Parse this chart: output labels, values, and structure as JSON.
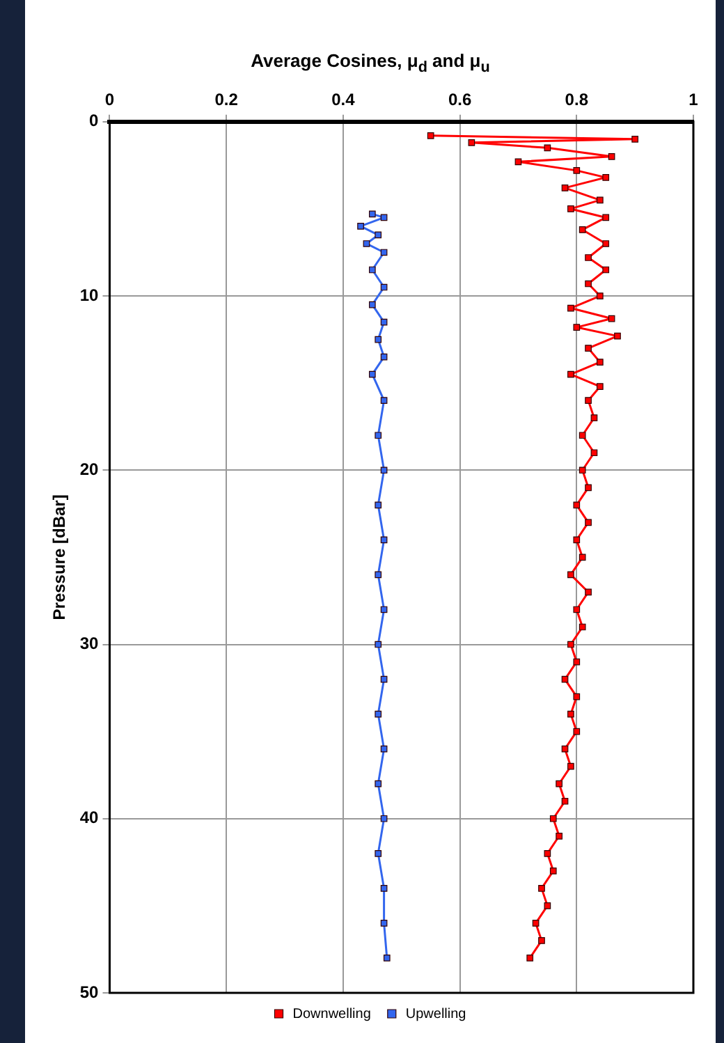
{
  "chart_data": {
    "type": "line",
    "xlabel": "Average Cosines, μ$_{d}$ and μ$_{u}$",
    "ylabel": "Pressure [dBar]",
    "xlim": [
      0,
      1
    ],
    "xticks": [
      0,
      0.2,
      0.4,
      0.6,
      0.8,
      1
    ],
    "ylim": [
      50,
      0
    ],
    "yticks": [
      0,
      10,
      20,
      30,
      40,
      50
    ],
    "grid": true,
    "legend": "bottom",
    "marker": "square",
    "line_style": "solid",
    "series": [
      {
        "name": "Downwelling",
        "color": "#ff0000",
        "x": [
          0.55,
          0.9,
          0.62,
          0.75,
          0.86,
          0.7,
          0.8,
          0.85,
          0.78,
          0.84,
          0.79,
          0.85,
          0.81,
          0.85,
          0.82,
          0.85,
          0.82,
          0.84,
          0.79,
          0.86,
          0.8,
          0.87,
          0.82,
          0.84,
          0.79,
          0.84,
          0.82,
          0.83,
          0.81,
          0.83,
          0.81,
          0.82,
          0.8,
          0.82,
          0.8,
          0.81,
          0.79,
          0.82,
          0.8,
          0.81,
          0.79,
          0.8,
          0.78,
          0.8,
          0.79,
          0.8,
          0.78,
          0.79,
          0.77,
          0.78,
          0.76,
          0.77,
          0.75,
          0.76,
          0.74,
          0.75,
          0.73,
          0.74,
          0.72
        ],
        "values": [
          0.8,
          1,
          1.2,
          1.5,
          2,
          2.3,
          2.8,
          3.2,
          3.8,
          4.5,
          5,
          5.5,
          6.2,
          7,
          7.8,
          8.5,
          9.3,
          10,
          10.7,
          11.3,
          11.8,
          12.3,
          13,
          13.8,
          14.5,
          15.2,
          16,
          17,
          18,
          19,
          20,
          21,
          22,
          23,
          24,
          25,
          26,
          27,
          28,
          29,
          30,
          31,
          32,
          33,
          34,
          35,
          36,
          37,
          38,
          39,
          40,
          41,
          42,
          43,
          44,
          45,
          46,
          47,
          48
        ]
      },
      {
        "name": "Upwelling",
        "color": "#3366ee",
        "x": [
          0.45,
          0.47,
          0.43,
          0.46,
          0.44,
          0.47,
          0.45,
          0.47,
          0.45,
          0.47,
          0.46,
          0.47,
          0.45,
          0.47,
          0.46,
          0.47,
          0.46,
          0.47,
          0.46,
          0.47,
          0.46,
          0.47,
          0.46,
          0.47,
          0.46,
          0.47,
          0.46,
          0.47,
          0.47,
          0.475
        ],
        "values": [
          5.3,
          5.5,
          6,
          6.5,
          7,
          7.5,
          8.5,
          9.5,
          10.5,
          11.5,
          12.5,
          13.5,
          14.5,
          16,
          18,
          20,
          22,
          24,
          26,
          28,
          30,
          32,
          34,
          36,
          38,
          40,
          42,
          44,
          46,
          48
        ]
      }
    ]
  }
}
